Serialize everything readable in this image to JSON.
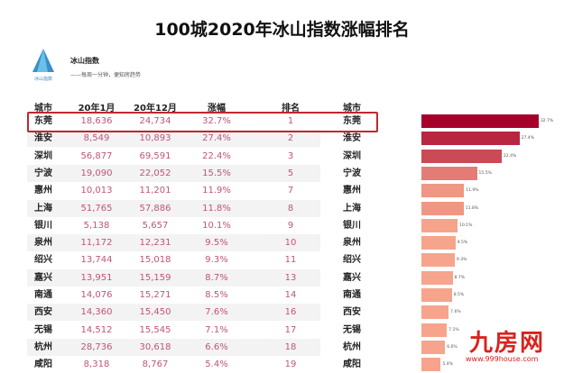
{
  "title": "100城2020年冰山指数涨幅排名",
  "brand": {
    "name": "冰山指数",
    "slogan": "——每周一分钟，便知房趋势",
    "logo_text": "冰山指数"
  },
  "watermark": {
    "text": "九房网",
    "url": "www.999house.com",
    "color": "#d8241c"
  },
  "highlight_color": "#c0282d",
  "chart_data": {
    "type": "table",
    "columns": [
      "城市",
      "20年1月",
      "20年12月",
      "涨幅",
      "排名",
      "城市"
    ],
    "rows": [
      [
        "东莞",
        "18,636",
        "24,734",
        "32.7%",
        "1",
        "东莞"
      ],
      [
        "淮安",
        "8,549",
        "10,893",
        "27.4%",
        "2",
        "淮安"
      ],
      [
        "深圳",
        "56,877",
        "69,591",
        "22.4%",
        "3",
        "深圳"
      ],
      [
        "宁波",
        "19,090",
        "22,052",
        "15.5%",
        "5",
        "宁波"
      ],
      [
        "惠州",
        "10,013",
        "11,201",
        "11.9%",
        "7",
        "惠州"
      ],
      [
        "上海",
        "51,765",
        "57,886",
        "11.8%",
        "8",
        "上海"
      ],
      [
        "银川",
        "5,138",
        "5,657",
        "10.1%",
        "9",
        "银川"
      ],
      [
        "泉州",
        "11,172",
        "12,231",
        "9.5%",
        "10",
        "泉州"
      ],
      [
        "绍兴",
        "13,744",
        "15,018",
        "9.3%",
        "11",
        "绍兴"
      ],
      [
        "嘉兴",
        "13,951",
        "15,159",
        "8.7%",
        "13",
        "嘉兴"
      ],
      [
        "南通",
        "14,076",
        "15,271",
        "8.5%",
        "14",
        "南通"
      ],
      [
        "西安",
        "14,360",
        "15,450",
        "7.6%",
        "16",
        "西安"
      ],
      [
        "无锡",
        "14,512",
        "15,545",
        "7.1%",
        "17",
        "无锡"
      ],
      [
        "杭州",
        "28,736",
        "30,618",
        "6.6%",
        "18",
        "杭州"
      ],
      [
        "咸阳",
        "8,318",
        "8,767",
        "5.4%",
        "19",
        "咸阳"
      ]
    ],
    "bar_values": [
      32.7,
      27.4,
      22.4,
      15.5,
      11.9,
      11.8,
      10.1,
      9.5,
      9.3,
      8.7,
      8.5,
      7.6,
      7.1,
      6.6,
      5.4
    ],
    "bar_labels": [
      "32.7%",
      "27.4%",
      "22.4%",
      "15.5%",
      "11.9%",
      "11.8%",
      "10.1%",
      "9.5%",
      "9.3%",
      "8.7%",
      "8.5%",
      "7.6%",
      "7.1%",
      "6.6%",
      "5.4%"
    ],
    "bar_color_high": "#a6002a",
    "bar_color_low": "#f6a48c",
    "highlighted_row": 0
  }
}
